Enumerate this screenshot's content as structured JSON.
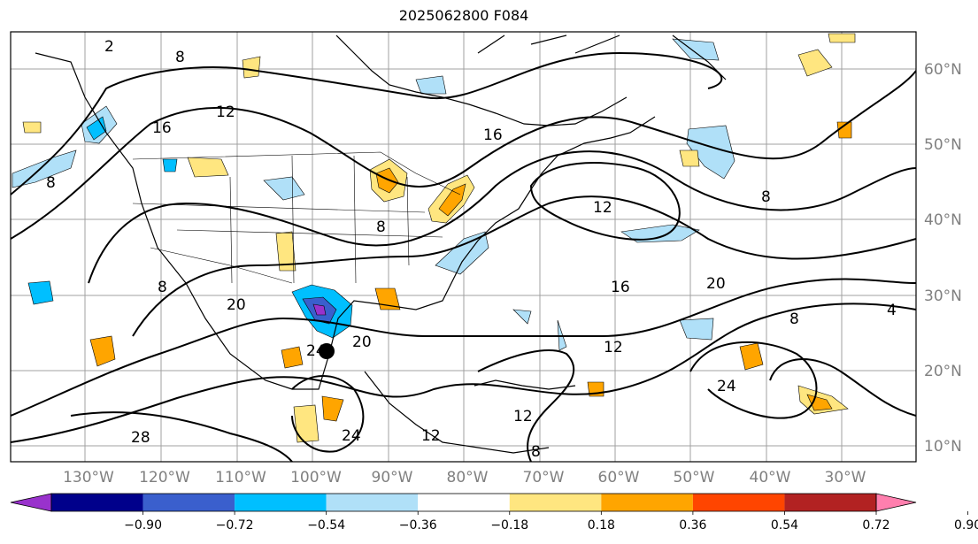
{
  "title": "2025062800 F084",
  "longitude_labels": [
    "130°W",
    "120°W",
    "110°W",
    "100°W",
    "90°W",
    "80°W",
    "70°W",
    "60°W",
    "50°W",
    "40°W",
    "30°W"
  ],
  "latitude_labels": [
    "60°N",
    "50°N",
    "40°N",
    "30°N",
    "20°N",
    "10°N"
  ],
  "contour_labels": [
    "2",
    "8",
    "16",
    "12",
    "16",
    "12",
    "8",
    "8",
    "8",
    "12",
    "16",
    "20",
    "4",
    "8",
    "12",
    "20",
    "20",
    "24",
    "24",
    "12",
    "28",
    "24",
    "8",
    "8"
  ],
  "colorbar": {
    "ticks": [
      "−0.90",
      "−0.72",
      "−0.54",
      "−0.36",
      "−0.18",
      "0.18",
      "0.36",
      "0.54",
      "0.72",
      "0.90"
    ],
    "colors": [
      "#9932cc",
      "#00008b",
      "#3a5fcd",
      "#00bfff",
      "#b0e0f8",
      "#ffffff",
      "#ffe680",
      "#ffa500",
      "#ff4500",
      "#b22222",
      "#ff7fae"
    ]
  }
}
